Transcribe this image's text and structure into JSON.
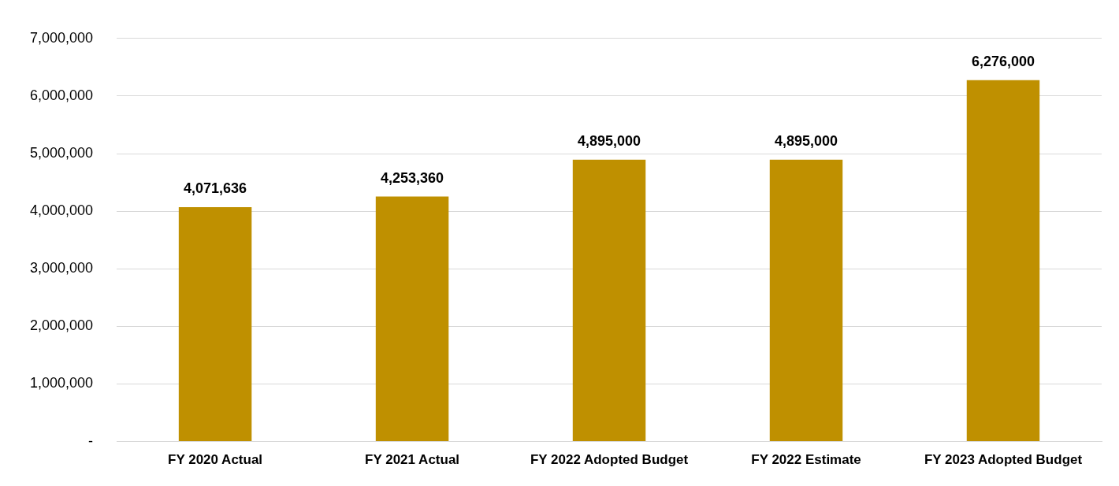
{
  "chart_data": {
    "type": "bar",
    "categories": [
      "FY 2020 Actual",
      "FY 2021 Actual",
      "FY 2022 Adopted Budget",
      "FY 2022 Estimate",
      "FY 2023 Adopted Budget"
    ],
    "values": [
      4071636,
      4253360,
      4895000,
      4895000,
      6276000
    ],
    "value_labels": [
      "4,071,636",
      "4,253,360",
      "4,895,000",
      "4,895,000",
      "6,276,000"
    ],
    "color": "#bf9000",
    "ylim": [
      0,
      7000000
    ],
    "yticks": [
      {
        "value": 0,
        "label": "-"
      },
      {
        "value": 1000000,
        "label": "1,000,000"
      },
      {
        "value": 2000000,
        "label": "2,000,000"
      },
      {
        "value": 3000000,
        "label": "3,000,000"
      },
      {
        "value": 4000000,
        "label": "4,000,000"
      },
      {
        "value": 5000000,
        "label": "5,000,000"
      },
      {
        "value": 6000000,
        "label": "6,000,000"
      },
      {
        "value": 7000000,
        "label": "7,000,000"
      }
    ],
    "grid": "y",
    "legend": false
  }
}
